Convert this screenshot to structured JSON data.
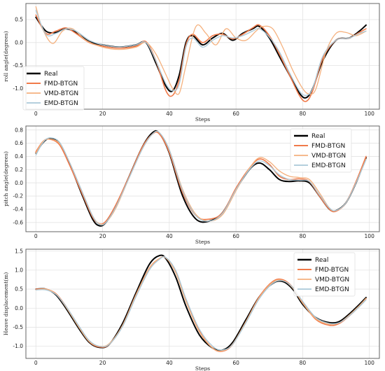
{
  "colors": {
    "Real": "#000000",
    "FMD-BTGN": "#f07a4a",
    "VMD-BTGN": "#f5b17e",
    "EMD-BTGN": "#a9c8d8"
  },
  "chart_data": [
    {
      "type": "line",
      "xlabel": "Steps",
      "ylabel": "roll angle(degrees)",
      "xlim": [
        -3,
        103
      ],
      "ylim": [
        -1.45,
        0.85
      ],
      "xticks": [
        0,
        20,
        40,
        60,
        80,
        100
      ],
      "xtick_labels": [
        "0",
        "20",
        "40",
        "60",
        "80",
        "100"
      ],
      "yticks": [
        0.5,
        0.0,
        -0.5,
        -1.0
      ],
      "ytick_labels": [
        "0.5",
        "0.0",
        "-0.5",
        "-1.0"
      ],
      "grid": true,
      "legend_position": "left",
      "series": [
        {
          "name": "Real",
          "x": [
            0,
            3,
            6,
            9,
            12,
            16,
            20,
            25,
            30,
            33,
            36,
            39,
            41,
            43,
            45,
            47,
            50,
            53,
            56,
            59,
            62,
            65,
            67,
            70,
            73,
            76,
            79,
            81,
            83,
            86,
            90,
            94,
            97,
            99
          ],
          "y": [
            0.55,
            0.25,
            0.22,
            0.3,
            0.22,
            0.02,
            -0.05,
            -0.1,
            -0.05,
            0.0,
            -0.45,
            -0.95,
            -1.05,
            -0.7,
            0.0,
            0.15,
            -0.05,
            0.1,
            0.2,
            0.05,
            0.2,
            0.3,
            0.35,
            0.1,
            -0.3,
            -0.7,
            -1.1,
            -1.2,
            -1.0,
            -0.4,
            0.05,
            0.1,
            0.25,
            0.38
          ]
        },
        {
          "name": "FMD-BTGN",
          "x": [
            0,
            3,
            6,
            9,
            12,
            16,
            20,
            25,
            30,
            33,
            36,
            39,
            41,
            43,
            45,
            47,
            50,
            53,
            56,
            59,
            62,
            65,
            67,
            70,
            73,
            76,
            79,
            81,
            83,
            86,
            90,
            94,
            97,
            99
          ],
          "y": [
            0.6,
            0.2,
            0.25,
            0.32,
            0.2,
            0.0,
            -0.08,
            -0.12,
            -0.08,
            0.02,
            -0.4,
            -1.05,
            -1.15,
            -0.8,
            -0.05,
            0.18,
            0.0,
            0.15,
            0.18,
            0.08,
            0.18,
            0.32,
            0.38,
            0.15,
            -0.25,
            -0.7,
            -1.15,
            -1.28,
            -1.05,
            -0.35,
            0.05,
            0.1,
            0.22,
            0.3
          ]
        },
        {
          "name": "VMD-BTGN",
          "x": [
            0,
            2,
            5,
            8,
            11,
            15,
            20,
            25,
            30,
            33,
            36,
            39,
            41,
            43,
            45,
            48,
            51,
            54,
            57,
            60,
            63,
            66,
            68,
            71,
            74,
            77,
            80,
            82,
            84,
            87,
            90,
            93,
            96,
            99
          ],
          "y": [
            0.78,
            0.3,
            -0.02,
            0.25,
            0.3,
            0.05,
            -0.1,
            -0.15,
            -0.1,
            0.0,
            -0.25,
            -0.7,
            -1.0,
            -1.1,
            -0.5,
            0.35,
            0.2,
            -0.05,
            0.3,
            0.1,
            0.05,
            0.25,
            0.35,
            0.3,
            -0.1,
            -0.6,
            -1.0,
            -1.12,
            -1.0,
            -0.2,
            0.2,
            0.22,
            0.15,
            0.25
          ]
        },
        {
          "name": "EMD-BTGN",
          "x": [
            0,
            3,
            6,
            9,
            12,
            16,
            20,
            25,
            30,
            33,
            36,
            39,
            41,
            43,
            45,
            47,
            50,
            53,
            56,
            59,
            62,
            65,
            67,
            70,
            73,
            76,
            79,
            81,
            83,
            86,
            90,
            94,
            97,
            99
          ],
          "y": [
            0.7,
            0.18,
            0.2,
            0.3,
            0.25,
            0.05,
            -0.05,
            -0.1,
            -0.05,
            0.0,
            -0.4,
            -0.9,
            -1.05,
            -0.9,
            -0.1,
            0.1,
            -0.1,
            0.05,
            0.15,
            0.1,
            0.15,
            0.25,
            0.3,
            0.12,
            -0.2,
            -0.65,
            -1.05,
            -1.15,
            -1.0,
            -0.3,
            0.05,
            0.1,
            0.2,
            0.25
          ]
        }
      ]
    },
    {
      "type": "line",
      "xlabel": "Steps",
      "ylabel": "pitch angle(degrees)",
      "xlim": [
        -3,
        103
      ],
      "ylim": [
        -0.74,
        0.86
      ],
      "xticks": [
        0,
        20,
        40,
        60,
        80,
        100
      ],
      "xtick_labels": [
        "0",
        "20",
        "40",
        "60",
        "80",
        "100"
      ],
      "yticks": [
        0.8,
        0.6,
        0.4,
        0.2,
        0.0,
        -0.2,
        -0.4,
        -0.6
      ],
      "ytick_labels": [
        "0.8",
        "0.6",
        "0.4",
        "0.2",
        "0.0",
        "-0.2",
        "-0.4",
        "-0.6"
      ],
      "grid": true,
      "legend_position": "top-right",
      "series": [
        {
          "name": "Real",
          "x": [
            0,
            2,
            4,
            7,
            10,
            14,
            17,
            19,
            21,
            24,
            28,
            32,
            35,
            37,
            40,
            44,
            48,
            52,
            56,
            60,
            64,
            67,
            70,
            73,
            76,
            79,
            82,
            85,
            88,
            90,
            93,
            96,
            99
          ],
          "y": [
            0.45,
            0.6,
            0.67,
            0.6,
            0.3,
            -0.2,
            -0.55,
            -0.65,
            -0.6,
            -0.35,
            0.1,
            0.55,
            0.76,
            0.75,
            0.45,
            -0.2,
            -0.55,
            -0.58,
            -0.45,
            -0.1,
            0.2,
            0.3,
            0.2,
            0.05,
            0.02,
            0.03,
            0.0,
            -0.2,
            -0.4,
            -0.42,
            -0.3,
            0.0,
            0.38
          ]
        },
        {
          "name": "FMD-BTGN",
          "x": [
            0,
            2,
            4,
            7,
            10,
            14,
            17,
            19,
            21,
            24,
            28,
            32,
            35,
            37,
            40,
            44,
            48,
            52,
            56,
            60,
            64,
            67,
            70,
            73,
            76,
            79,
            82,
            85,
            88,
            90,
            93,
            96,
            99
          ],
          "y": [
            0.47,
            0.62,
            0.66,
            0.58,
            0.28,
            -0.18,
            -0.52,
            -0.62,
            -0.58,
            -0.33,
            0.1,
            0.55,
            0.74,
            0.74,
            0.46,
            -0.15,
            -0.5,
            -0.55,
            -0.45,
            -0.08,
            0.22,
            0.36,
            0.28,
            0.1,
            0.05,
            0.06,
            0.02,
            -0.2,
            -0.4,
            -0.43,
            -0.3,
            0.02,
            0.4
          ]
        },
        {
          "name": "VMD-BTGN",
          "x": [
            0,
            2,
            4,
            7,
            10,
            14,
            17,
            19,
            21,
            24,
            28,
            32,
            35,
            37,
            40,
            44,
            48,
            52,
            56,
            60,
            64,
            67,
            70,
            73,
            76,
            79,
            82,
            85,
            88,
            90,
            93,
            96,
            99
          ],
          "y": [
            0.45,
            0.62,
            0.66,
            0.6,
            0.32,
            -0.15,
            -0.5,
            -0.62,
            -0.6,
            -0.38,
            0.08,
            0.52,
            0.74,
            0.76,
            0.5,
            -0.1,
            -0.48,
            -0.58,
            -0.48,
            -0.12,
            0.22,
            0.38,
            0.32,
            0.18,
            0.1,
            0.08,
            0.05,
            -0.15,
            -0.38,
            -0.42,
            -0.3,
            0.0,
            0.36
          ]
        },
        {
          "name": "EMD-BTGN",
          "x": [
            0,
            2,
            4,
            7,
            10,
            14,
            17,
            19,
            21,
            24,
            28,
            32,
            35,
            37,
            40,
            44,
            48,
            52,
            56,
            60,
            64,
            67,
            70,
            73,
            76,
            79,
            82,
            85,
            88,
            90,
            93,
            96,
            99
          ],
          "y": [
            0.42,
            0.6,
            0.68,
            0.62,
            0.32,
            -0.15,
            -0.5,
            -0.63,
            -0.6,
            -0.36,
            0.08,
            0.52,
            0.74,
            0.76,
            0.5,
            -0.12,
            -0.5,
            -0.58,
            -0.46,
            -0.1,
            0.2,
            0.33,
            0.26,
            0.12,
            0.05,
            0.04,
            0.02,
            -0.18,
            -0.38,
            -0.42,
            -0.3,
            0.0,
            0.35
          ]
        }
      ]
    },
    {
      "type": "line",
      "xlabel": "Steps",
      "ylabel": "Heave displacement(m)",
      "xlim": [
        -3,
        103
      ],
      "ylim": [
        -1.32,
        1.55
      ],
      "xticks": [
        0,
        20,
        40,
        60,
        80,
        100
      ],
      "xtick_labels": [
        "0",
        "20",
        "40",
        "60",
        "80",
        "100"
      ],
      "yticks": [
        1.5,
        1.0,
        0.5,
        0.0,
        -0.5,
        -1.0
      ],
      "ytick_labels": [
        "1.5",
        "1.0",
        "0.5",
        "0.0",
        "-0.5",
        "-1.0"
      ],
      "grid": true,
      "legend_position": "top-right",
      "series": [
        {
          "name": "Real",
          "x": [
            0,
            3,
            6,
            9,
            13,
            16,
            19,
            22,
            26,
            30,
            34,
            37,
            39,
            42,
            45,
            49,
            53,
            56,
            59,
            63,
            67,
            71,
            74,
            77,
            80,
            84,
            88,
            91,
            94,
            97,
            99
          ],
          "y": [
            0.5,
            0.5,
            0.35,
            0.0,
            -0.55,
            -0.9,
            -1.03,
            -0.95,
            -0.4,
            0.4,
            1.15,
            1.38,
            1.3,
            0.8,
            0.05,
            -0.7,
            -1.05,
            -1.1,
            -0.9,
            -0.3,
            0.3,
            0.65,
            0.7,
            0.5,
            0.1,
            -0.25,
            -0.38,
            -0.35,
            -0.15,
            0.1,
            0.28
          ]
        },
        {
          "name": "FMD-BTGN",
          "x": [
            0,
            3,
            6,
            9,
            13,
            16,
            19,
            22,
            26,
            30,
            34,
            37,
            39,
            42,
            45,
            49,
            53,
            56,
            59,
            63,
            67,
            71,
            74,
            77,
            80,
            84,
            88,
            91,
            94,
            97,
            99
          ],
          "y": [
            0.5,
            0.5,
            0.38,
            0.05,
            -0.5,
            -0.88,
            -1.02,
            -0.95,
            -0.45,
            0.35,
            1.05,
            1.3,
            1.32,
            0.95,
            0.2,
            -0.6,
            -1.05,
            -1.13,
            -0.95,
            -0.35,
            0.3,
            0.7,
            0.75,
            0.55,
            0.15,
            -0.3,
            -0.45,
            -0.4,
            -0.2,
            0.05,
            0.25
          ]
        },
        {
          "name": "VMD-BTGN",
          "x": [
            0,
            3,
            6,
            9,
            13,
            16,
            19,
            22,
            26,
            30,
            34,
            37,
            39,
            42,
            45,
            49,
            53,
            56,
            59,
            63,
            67,
            71,
            74,
            77,
            80,
            84,
            88,
            91,
            94,
            97,
            99
          ],
          "y": [
            0.48,
            0.5,
            0.37,
            0.03,
            -0.52,
            -0.88,
            -1.0,
            -0.93,
            -0.45,
            0.35,
            1.05,
            1.3,
            1.32,
            0.92,
            0.18,
            -0.62,
            -1.05,
            -1.12,
            -0.94,
            -0.35,
            0.28,
            0.68,
            0.73,
            0.53,
            0.13,
            -0.28,
            -0.42,
            -0.38,
            -0.18,
            0.07,
            0.26
          ]
        },
        {
          "name": "EMD-BTGN",
          "x": [
            0,
            3,
            6,
            9,
            13,
            16,
            19,
            22,
            26,
            30,
            34,
            37,
            39,
            42,
            45,
            49,
            53,
            56,
            59,
            63,
            67,
            71,
            74,
            77,
            80,
            84,
            88,
            91,
            94,
            97,
            99
          ],
          "y": [
            0.48,
            0.48,
            0.36,
            0.05,
            -0.48,
            -0.85,
            -1.0,
            -0.95,
            -0.48,
            0.3,
            1.0,
            1.28,
            1.33,
            0.98,
            0.25,
            -0.55,
            -1.0,
            -1.1,
            -0.95,
            -0.38,
            0.25,
            0.65,
            0.72,
            0.55,
            0.18,
            -0.25,
            -0.4,
            -0.38,
            -0.2,
            0.04,
            0.22
          ]
        }
      ]
    }
  ]
}
